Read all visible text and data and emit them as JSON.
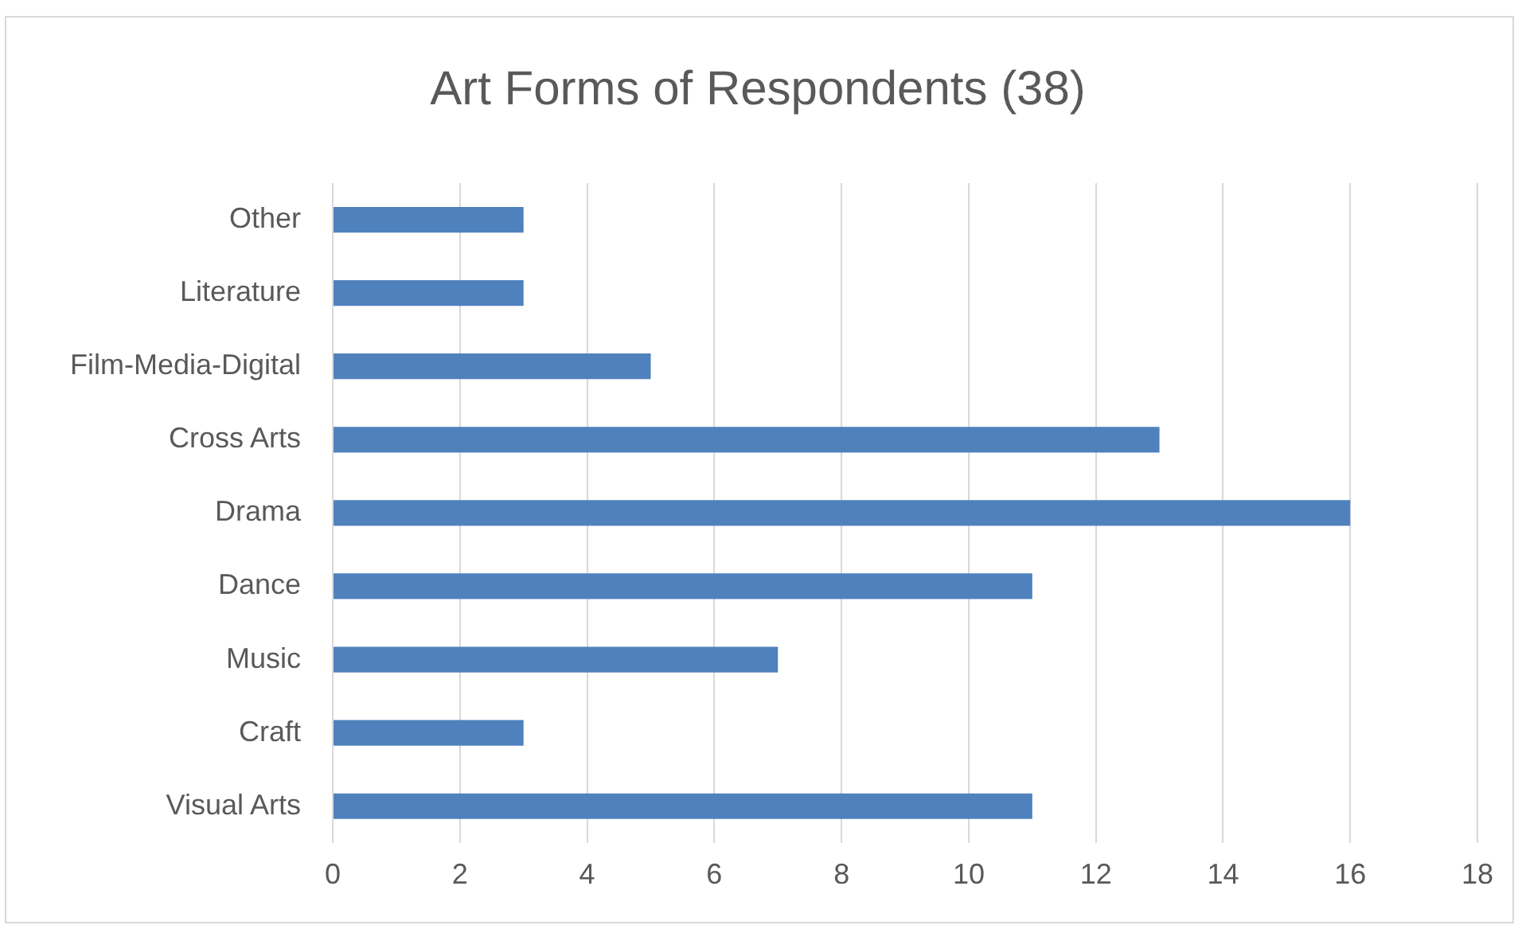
{
  "chart_data": {
    "type": "bar",
    "orientation": "horizontal",
    "title": "Art Forms of Respondents (38)",
    "categories": [
      "Other",
      "Literature",
      "Film-Media-Digital",
      "Cross Arts",
      "Drama",
      "Dance",
      "Music",
      "Craft",
      "Visual Arts"
    ],
    "values": [
      3,
      3,
      5,
      13,
      16,
      11,
      7,
      3,
      11
    ],
    "color": "#4f81bd",
    "xlim": [
      0,
      18
    ],
    "xticks": [
      0,
      2,
      4,
      6,
      8,
      10,
      12,
      14,
      16,
      18
    ],
    "grid": "x",
    "legend": false
  }
}
